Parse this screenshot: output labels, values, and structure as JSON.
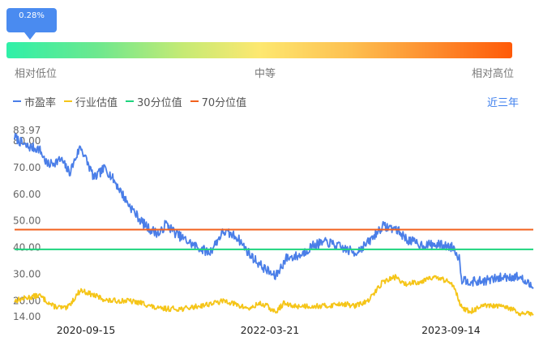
{
  "gauge": {
    "tooltip_value": "0.28%",
    "percentile": 0.0028,
    "label_low": "相对低位",
    "label_mid": "中等",
    "label_high": "相对高位"
  },
  "range_label": "近三年",
  "colors": {
    "pe": "#4a7ee8",
    "industry": "#f5c518",
    "p30": "#1ed47e",
    "p70": "#f2611d"
  },
  "chart_data": {
    "type": "line",
    "y_ticks": [
      "83.97",
      "80.00",
      "70.00",
      "60.00",
      "50.00",
      "40.00",
      "30.00",
      "20.00",
      "14.00"
    ],
    "y_tick_values": [
      83.97,
      80,
      70,
      60,
      50,
      40,
      30,
      20,
      14
    ],
    "ylim": [
      14,
      83.97
    ],
    "x_ticks": [
      "2020-09-15",
      "2022-03-21",
      "2023-09-14"
    ],
    "x_tick_indices": [
      26,
      93,
      159
    ],
    "n_points": 190,
    "series": [
      {
        "name": "市盈率",
        "key": "pe",
        "anchors": [
          [
            0,
            81.5
          ],
          [
            4,
            78
          ],
          [
            9,
            77
          ],
          [
            12,
            71
          ],
          [
            17,
            73
          ],
          [
            20,
            68
          ],
          [
            24,
            78
          ],
          [
            29,
            66
          ],
          [
            33,
            70
          ],
          [
            37,
            64
          ],
          [
            41,
            57
          ],
          [
            46,
            50
          ],
          [
            49,
            47
          ],
          [
            53,
            45
          ],
          [
            55,
            49
          ],
          [
            59,
            45
          ],
          [
            65,
            41
          ],
          [
            71,
            38
          ],
          [
            76,
            46
          ],
          [
            81,
            44
          ],
          [
            86,
            37
          ],
          [
            90,
            33
          ],
          [
            95,
            29
          ],
          [
            99,
            36
          ],
          [
            104,
            37
          ],
          [
            109,
            41
          ],
          [
            114,
            42
          ],
          [
            119,
            40
          ],
          [
            124,
            38
          ],
          [
            129,
            42
          ],
          [
            134,
            48
          ],
          [
            139,
            47
          ],
          [
            143,
            43
          ],
          [
            148,
            41
          ],
          [
            155,
            41
          ],
          [
            160,
            40
          ],
          [
            162,
            36
          ],
          [
            163,
            28
          ],
          [
            168,
            27
          ],
          [
            174,
            28
          ],
          [
            179,
            29
          ],
          [
            184,
            29
          ],
          [
            186,
            27
          ],
          [
            189,
            25
          ]
        ],
        "jitter": 1.8
      },
      {
        "name": "行业估值",
        "key": "industry",
        "anchors": [
          [
            0,
            20
          ],
          [
            4,
            21
          ],
          [
            9,
            22
          ],
          [
            14,
            18
          ],
          [
            19,
            17
          ],
          [
            24,
            24
          ],
          [
            29,
            22
          ],
          [
            34,
            20
          ],
          [
            41,
            20
          ],
          [
            47,
            19
          ],
          [
            52,
            17
          ],
          [
            57,
            17
          ],
          [
            62,
            17
          ],
          [
            67,
            18
          ],
          [
            72,
            19
          ],
          [
            77,
            20
          ],
          [
            82,
            18
          ],
          [
            86,
            17
          ],
          [
            89,
            19
          ],
          [
            92,
            18
          ],
          [
            95,
            15.5
          ],
          [
            98,
            19
          ],
          [
            101,
            18
          ],
          [
            104,
            18
          ],
          [
            109,
            18
          ],
          [
            114,
            18
          ],
          [
            119,
            19
          ],
          [
            124,
            18
          ],
          [
            129,
            20
          ],
          [
            134,
            27
          ],
          [
            139,
            29
          ],
          [
            142,
            26
          ],
          [
            145,
            27
          ],
          [
            148,
            27
          ],
          [
            151,
            29
          ],
          [
            156,
            28
          ],
          [
            160,
            26
          ],
          [
            163,
            17
          ],
          [
            166,
            16
          ],
          [
            171,
            18
          ],
          [
            176,
            18
          ],
          [
            181,
            17
          ],
          [
            184,
            15
          ],
          [
            189,
            15
          ]
        ],
        "jitter": 1.0
      },
      {
        "name": "30分位值",
        "key": "p30",
        "constant": 39.3
      },
      {
        "name": "70分位值",
        "key": "p70",
        "constant": 46.7
      }
    ]
  }
}
